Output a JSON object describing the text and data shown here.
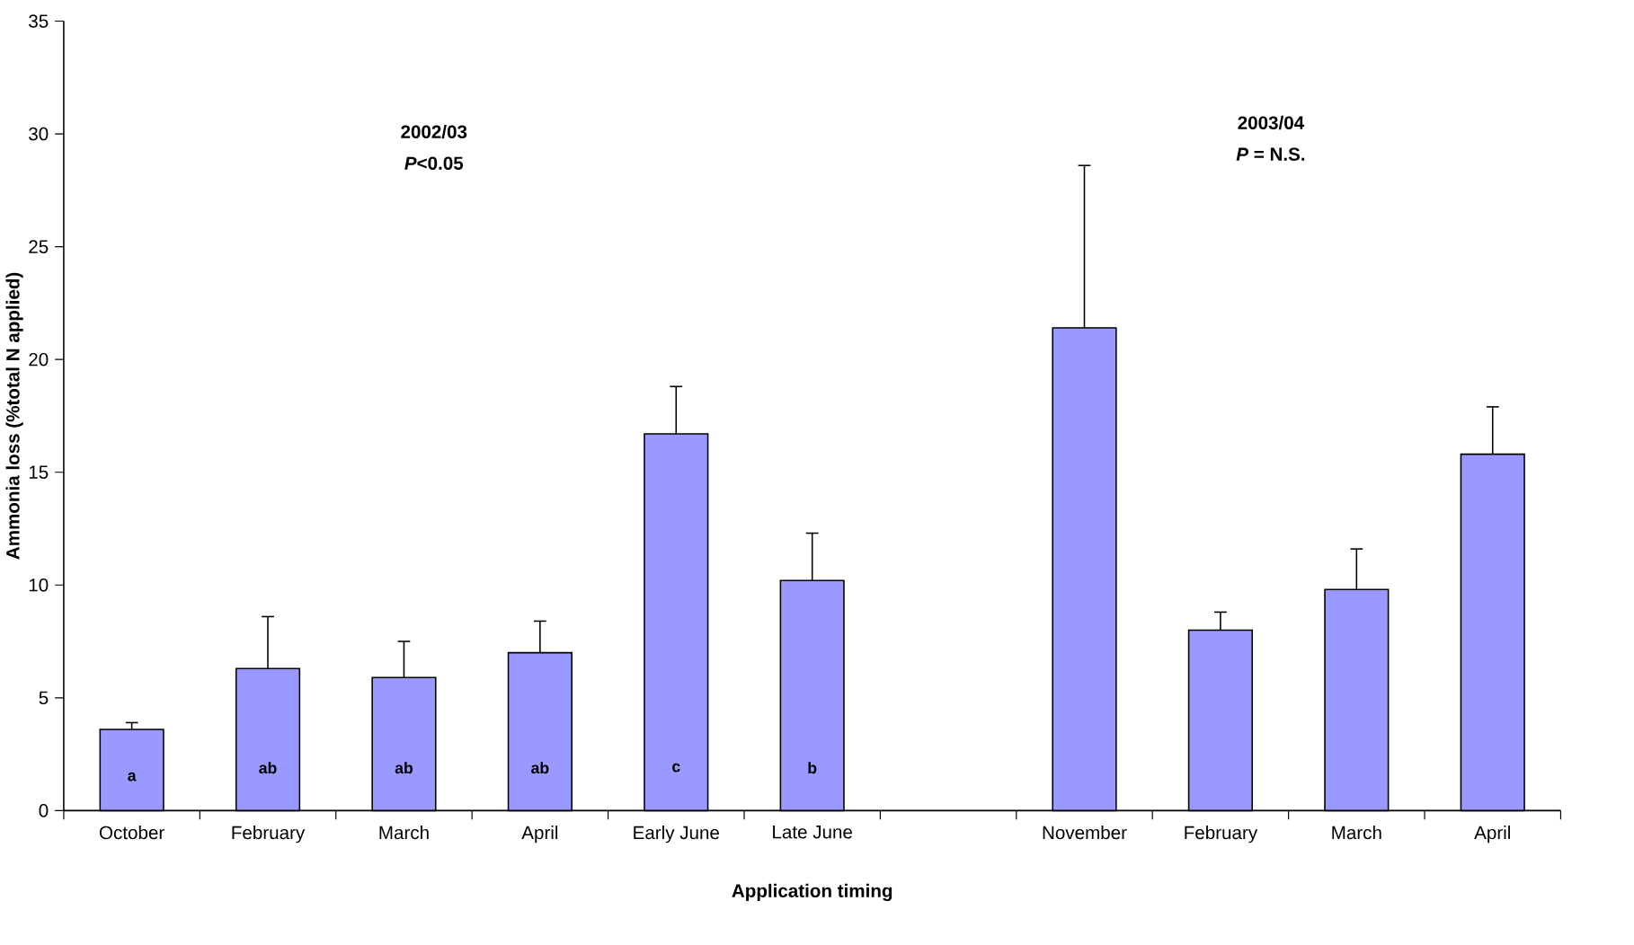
{
  "chart_data": {
    "type": "bar",
    "xlabel": "Application timing",
    "ylabel": "Ammonia loss (%total N applied)",
    "categories": [
      "October",
      "February",
      "March",
      "April",
      "Early June",
      "Late June",
      null,
      "November",
      "February",
      "March",
      "April"
    ],
    "values": [
      3.6,
      6.3,
      5.9,
      7.0,
      16.7,
      10.2,
      null,
      21.4,
      8.0,
      9.8,
      15.8
    ],
    "errors": [
      0.3,
      2.3,
      1.6,
      1.4,
      2.1,
      2.1,
      null,
      7.2,
      0.8,
      1.8,
      2.1
    ],
    "color": "#9999ff",
    "ylim": [
      0,
      35
    ],
    "yticks": [
      0,
      5,
      10,
      15,
      20,
      25,
      30,
      35
    ],
    "grid": false,
    "annotations": [
      "2002/03",
      "*P*<0.05",
      "2003/04",
      "*P* = N.S.",
      "a",
      "ab",
      "ab",
      "ab",
      "c",
      "b"
    ]
  }
}
